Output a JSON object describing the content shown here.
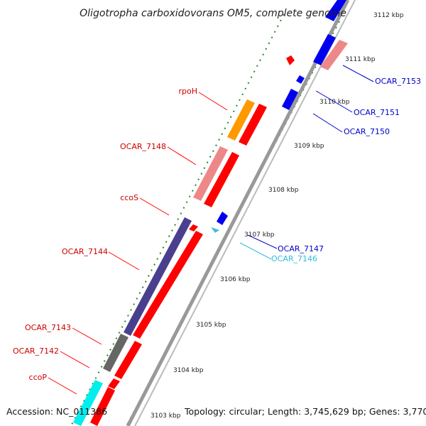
{
  "map": {
    "title": "Oligotropha carboxidovorans OM5, complete genome",
    "accession": "Accession: NC_011386",
    "summary": "Topology: circular; Length: 3,745,629 bp; Genes: 3,770",
    "scale_ticks": [
      "3103 kbp",
      "3104 kbp",
      "3105 kbp",
      "3106 kbp",
      "3107 kbp",
      "3108 kbp",
      "3109 kbp",
      "3110 kbp",
      "3111 kbp",
      "3112 kbp"
    ],
    "forward_labels": [
      {
        "text": "rpoH",
        "color": "#cc0000"
      },
      {
        "text": "OCAR_7148",
        "color": "#cc0000"
      },
      {
        "text": "ccoS",
        "color": "#cc0000"
      },
      {
        "text": "OCAR_7144",
        "color": "#cc0000"
      },
      {
        "text": "OCAR_7143",
        "color": "#cc0000"
      },
      {
        "text": "OCAR_7142",
        "color": "#cc0000"
      },
      {
        "text": "ccoP",
        "color": "#cc0000"
      }
    ],
    "reverse_labels": [
      {
        "text": "OCAR_7153",
        "color": "#0000cc"
      },
      {
        "text": "OCAR_7151",
        "color": "#0000cc"
      },
      {
        "text": "OCAR_7150",
        "color": "#0000cc"
      },
      {
        "text": "OCAR_7147",
        "color": "#0000cc"
      },
      {
        "text": "OCAR_7146",
        "color": "#33bbdd"
      }
    ],
    "colors": {
      "backbone": "#999999",
      "cds_forward": "#ff0000",
      "cds_reverse": "#0000ee",
      "orange": "#ff9900",
      "pink": "#ee8888",
      "purple": "#4a3f8f",
      "grey": "#666666",
      "cyan": "#00eeee",
      "light_blue": "#44bbdd",
      "tick_dots": "#228822"
    }
  }
}
